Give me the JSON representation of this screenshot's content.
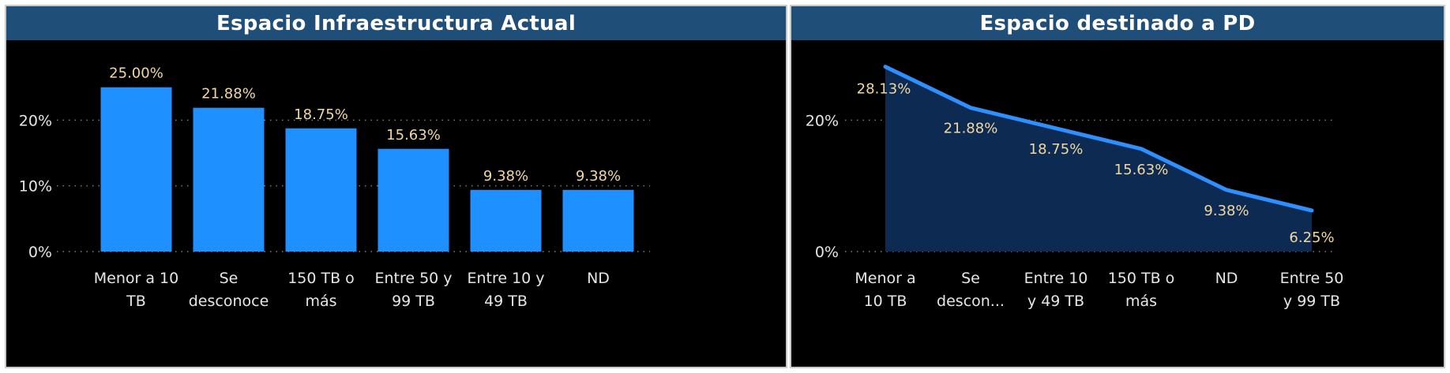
{
  "colors": {
    "bar": "#1e90ff",
    "line": "#2e8fff",
    "area": "#0d2a52",
    "header": "#1f4e79",
    "label": "#f2d8a0",
    "axis_text": "#e6e6e6",
    "grid": "#7a7a7a"
  },
  "chart_data": [
    {
      "type": "bar",
      "title": "Espacio Infraestructura Actual",
      "categories": [
        [
          "Menor a 10",
          "TB"
        ],
        [
          "Se",
          "desconoce"
        ],
        [
          "150 TB o",
          "más"
        ],
        [
          "Entre 50 y",
          "99 TB"
        ],
        [
          "Entre 10 y",
          "49 TB"
        ],
        [
          "ND"
        ]
      ],
      "values": [
        25.0,
        21.88,
        18.75,
        15.63,
        9.38,
        9.38
      ],
      "data_labels": [
        "25.00%",
        "21.88%",
        "18.75%",
        "15.63%",
        "9.38%",
        "9.38%"
      ],
      "yticks": [
        "0%",
        "10%",
        "20%"
      ],
      "ytick_values": [
        0,
        10,
        20
      ],
      "ylim": [
        0,
        30
      ],
      "grid": true
    },
    {
      "type": "area",
      "title": "Espacio destinado a PD",
      "categories": [
        [
          "Menor a",
          "10 TB"
        ],
        [
          "Se",
          "descon..."
        ],
        [
          "Entre 10",
          "y 49 TB"
        ],
        [
          "150 TB o",
          "más"
        ],
        [
          "ND"
        ],
        [
          "Entre 50",
          "y 99 TB"
        ]
      ],
      "values": [
        28.13,
        21.88,
        18.75,
        15.63,
        9.38,
        6.25
      ],
      "data_labels": [
        "28.13%",
        "21.88%",
        "18.75%",
        "15.63%",
        "9.38%",
        "6.25%"
      ],
      "yticks": [
        "0%",
        "20%"
      ],
      "ytick_values": [
        0,
        20
      ],
      "ylim": [
        0,
        30
      ],
      "grid": true
    }
  ]
}
